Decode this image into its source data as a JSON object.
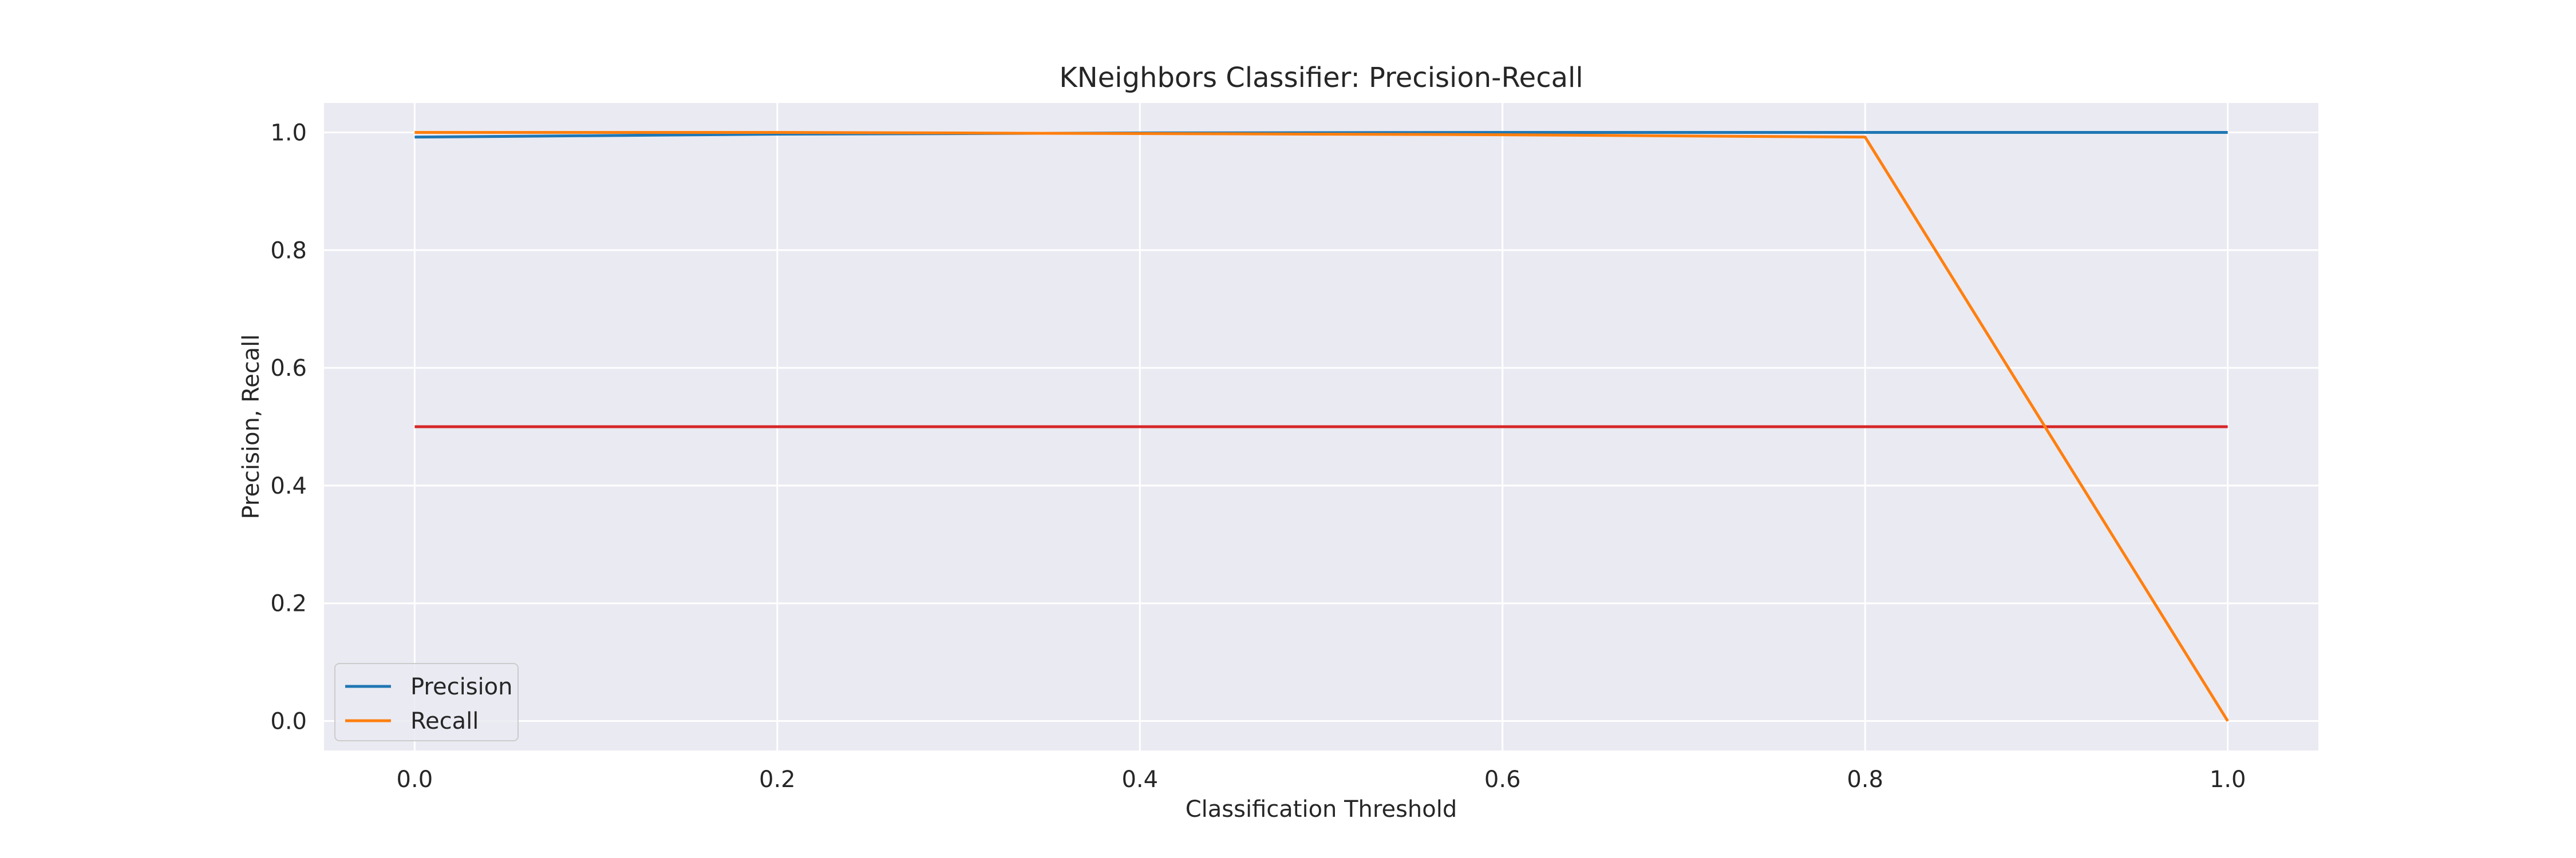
{
  "chart_data": {
    "type": "line",
    "title": "KNeighbors Classifier: Precision-Recall",
    "xlabel": "Classification Threshold",
    "ylabel": "Precision, Recall",
    "xlim": [
      -0.05,
      1.05
    ],
    "ylim": [
      -0.05,
      1.05
    ],
    "xticks": [
      0.0,
      0.2,
      0.4,
      0.6,
      0.8,
      1.0
    ],
    "xtick_labels": [
      "0.0",
      "0.2",
      "0.4",
      "0.6",
      "0.8",
      "1.0"
    ],
    "yticks": [
      0.0,
      0.2,
      0.4,
      0.6,
      0.8,
      1.0
    ],
    "ytick_labels": [
      "0.0",
      "0.2",
      "0.4",
      "0.6",
      "0.8",
      "1.0"
    ],
    "grid": true,
    "legend_position": "lower-left",
    "background_color": "#eaeaf2",
    "grid_color": "#ffffff",
    "series": [
      {
        "name": "Precision",
        "color": "#1f77b4",
        "x": [
          0.0,
          0.2,
          0.4,
          0.6,
          0.8,
          1.0
        ],
        "y": [
          0.992,
          0.997,
          0.999,
          1.0,
          1.0,
          1.0
        ]
      },
      {
        "name": "Recall",
        "color": "#ff7f0e",
        "x": [
          0.0,
          0.2,
          0.4,
          0.6,
          0.8,
          1.0
        ],
        "y": [
          1.0,
          1.0,
          0.998,
          0.996,
          0.992,
          0.0
        ]
      }
    ],
    "reference_lines": [
      {
        "color": "#d62728",
        "x": [
          0.0,
          1.0
        ],
        "y": [
          0.5,
          0.5
        ]
      }
    ]
  }
}
